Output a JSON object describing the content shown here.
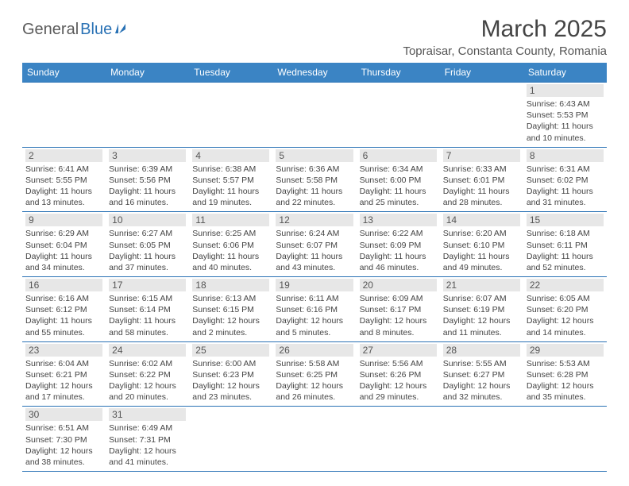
{
  "logo": {
    "general": "General",
    "blue": "Blue"
  },
  "title": "March 2025",
  "location": "Topraisar, Constanta County, Romania",
  "daysOfWeek": [
    "Sunday",
    "Monday",
    "Tuesday",
    "Wednesday",
    "Thursday",
    "Friday",
    "Saturday"
  ],
  "colors": {
    "headerBg": "#3b84c4",
    "headerText": "#ffffff",
    "border": "#2a72b5",
    "dayBg": "#e7e7e7",
    "logoBlue": "#2a72b5"
  },
  "weeks": [
    [
      null,
      null,
      null,
      null,
      null,
      null,
      {
        "n": "1",
        "sunrise": "Sunrise: 6:43 AM",
        "sunset": "Sunset: 5:53 PM",
        "daylight1": "Daylight: 11 hours",
        "daylight2": "and 10 minutes."
      }
    ],
    [
      {
        "n": "2",
        "sunrise": "Sunrise: 6:41 AM",
        "sunset": "Sunset: 5:55 PM",
        "daylight1": "Daylight: 11 hours",
        "daylight2": "and 13 minutes."
      },
      {
        "n": "3",
        "sunrise": "Sunrise: 6:39 AM",
        "sunset": "Sunset: 5:56 PM",
        "daylight1": "Daylight: 11 hours",
        "daylight2": "and 16 minutes."
      },
      {
        "n": "4",
        "sunrise": "Sunrise: 6:38 AM",
        "sunset": "Sunset: 5:57 PM",
        "daylight1": "Daylight: 11 hours",
        "daylight2": "and 19 minutes."
      },
      {
        "n": "5",
        "sunrise": "Sunrise: 6:36 AM",
        "sunset": "Sunset: 5:58 PM",
        "daylight1": "Daylight: 11 hours",
        "daylight2": "and 22 minutes."
      },
      {
        "n": "6",
        "sunrise": "Sunrise: 6:34 AM",
        "sunset": "Sunset: 6:00 PM",
        "daylight1": "Daylight: 11 hours",
        "daylight2": "and 25 minutes."
      },
      {
        "n": "7",
        "sunrise": "Sunrise: 6:33 AM",
        "sunset": "Sunset: 6:01 PM",
        "daylight1": "Daylight: 11 hours",
        "daylight2": "and 28 minutes."
      },
      {
        "n": "8",
        "sunrise": "Sunrise: 6:31 AM",
        "sunset": "Sunset: 6:02 PM",
        "daylight1": "Daylight: 11 hours",
        "daylight2": "and 31 minutes."
      }
    ],
    [
      {
        "n": "9",
        "sunrise": "Sunrise: 6:29 AM",
        "sunset": "Sunset: 6:04 PM",
        "daylight1": "Daylight: 11 hours",
        "daylight2": "and 34 minutes."
      },
      {
        "n": "10",
        "sunrise": "Sunrise: 6:27 AM",
        "sunset": "Sunset: 6:05 PM",
        "daylight1": "Daylight: 11 hours",
        "daylight2": "and 37 minutes."
      },
      {
        "n": "11",
        "sunrise": "Sunrise: 6:25 AM",
        "sunset": "Sunset: 6:06 PM",
        "daylight1": "Daylight: 11 hours",
        "daylight2": "and 40 minutes."
      },
      {
        "n": "12",
        "sunrise": "Sunrise: 6:24 AM",
        "sunset": "Sunset: 6:07 PM",
        "daylight1": "Daylight: 11 hours",
        "daylight2": "and 43 minutes."
      },
      {
        "n": "13",
        "sunrise": "Sunrise: 6:22 AM",
        "sunset": "Sunset: 6:09 PM",
        "daylight1": "Daylight: 11 hours",
        "daylight2": "and 46 minutes."
      },
      {
        "n": "14",
        "sunrise": "Sunrise: 6:20 AM",
        "sunset": "Sunset: 6:10 PM",
        "daylight1": "Daylight: 11 hours",
        "daylight2": "and 49 minutes."
      },
      {
        "n": "15",
        "sunrise": "Sunrise: 6:18 AM",
        "sunset": "Sunset: 6:11 PM",
        "daylight1": "Daylight: 11 hours",
        "daylight2": "and 52 minutes."
      }
    ],
    [
      {
        "n": "16",
        "sunrise": "Sunrise: 6:16 AM",
        "sunset": "Sunset: 6:12 PM",
        "daylight1": "Daylight: 11 hours",
        "daylight2": "and 55 minutes."
      },
      {
        "n": "17",
        "sunrise": "Sunrise: 6:15 AM",
        "sunset": "Sunset: 6:14 PM",
        "daylight1": "Daylight: 11 hours",
        "daylight2": "and 58 minutes."
      },
      {
        "n": "18",
        "sunrise": "Sunrise: 6:13 AM",
        "sunset": "Sunset: 6:15 PM",
        "daylight1": "Daylight: 12 hours",
        "daylight2": "and 2 minutes."
      },
      {
        "n": "19",
        "sunrise": "Sunrise: 6:11 AM",
        "sunset": "Sunset: 6:16 PM",
        "daylight1": "Daylight: 12 hours",
        "daylight2": "and 5 minutes."
      },
      {
        "n": "20",
        "sunrise": "Sunrise: 6:09 AM",
        "sunset": "Sunset: 6:17 PM",
        "daylight1": "Daylight: 12 hours",
        "daylight2": "and 8 minutes."
      },
      {
        "n": "21",
        "sunrise": "Sunrise: 6:07 AM",
        "sunset": "Sunset: 6:19 PM",
        "daylight1": "Daylight: 12 hours",
        "daylight2": "and 11 minutes."
      },
      {
        "n": "22",
        "sunrise": "Sunrise: 6:05 AM",
        "sunset": "Sunset: 6:20 PM",
        "daylight1": "Daylight: 12 hours",
        "daylight2": "and 14 minutes."
      }
    ],
    [
      {
        "n": "23",
        "sunrise": "Sunrise: 6:04 AM",
        "sunset": "Sunset: 6:21 PM",
        "daylight1": "Daylight: 12 hours",
        "daylight2": "and 17 minutes."
      },
      {
        "n": "24",
        "sunrise": "Sunrise: 6:02 AM",
        "sunset": "Sunset: 6:22 PM",
        "daylight1": "Daylight: 12 hours",
        "daylight2": "and 20 minutes."
      },
      {
        "n": "25",
        "sunrise": "Sunrise: 6:00 AM",
        "sunset": "Sunset: 6:23 PM",
        "daylight1": "Daylight: 12 hours",
        "daylight2": "and 23 minutes."
      },
      {
        "n": "26",
        "sunrise": "Sunrise: 5:58 AM",
        "sunset": "Sunset: 6:25 PM",
        "daylight1": "Daylight: 12 hours",
        "daylight2": "and 26 minutes."
      },
      {
        "n": "27",
        "sunrise": "Sunrise: 5:56 AM",
        "sunset": "Sunset: 6:26 PM",
        "daylight1": "Daylight: 12 hours",
        "daylight2": "and 29 minutes."
      },
      {
        "n": "28",
        "sunrise": "Sunrise: 5:55 AM",
        "sunset": "Sunset: 6:27 PM",
        "daylight1": "Daylight: 12 hours",
        "daylight2": "and 32 minutes."
      },
      {
        "n": "29",
        "sunrise": "Sunrise: 5:53 AM",
        "sunset": "Sunset: 6:28 PM",
        "daylight1": "Daylight: 12 hours",
        "daylight2": "and 35 minutes."
      }
    ],
    [
      {
        "n": "30",
        "sunrise": "Sunrise: 6:51 AM",
        "sunset": "Sunset: 7:30 PM",
        "daylight1": "Daylight: 12 hours",
        "daylight2": "and 38 minutes."
      },
      {
        "n": "31",
        "sunrise": "Sunrise: 6:49 AM",
        "sunset": "Sunset: 7:31 PM",
        "daylight1": "Daylight: 12 hours",
        "daylight2": "and 41 minutes."
      },
      null,
      null,
      null,
      null,
      null
    ]
  ]
}
